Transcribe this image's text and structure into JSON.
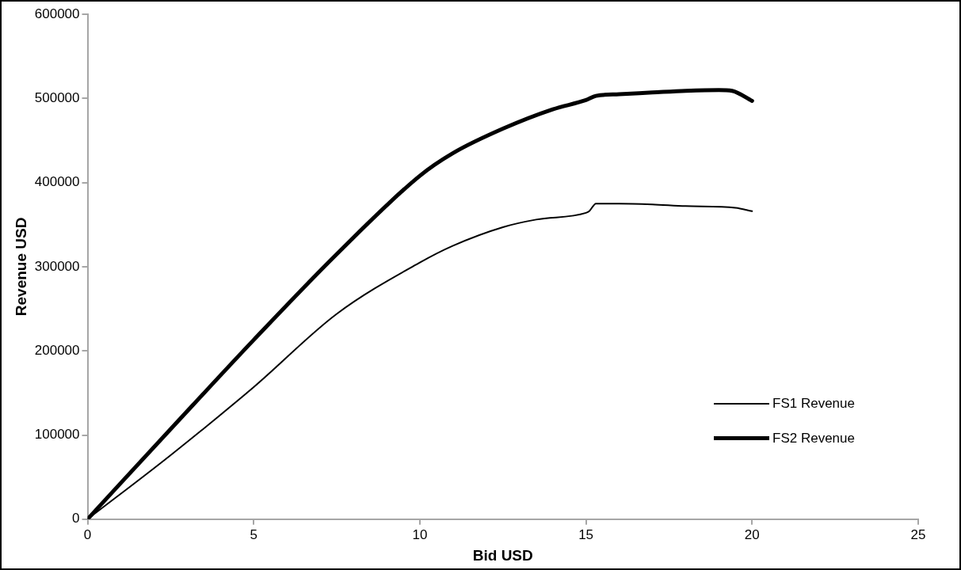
{
  "chart_data": {
    "type": "line",
    "xlabel": "Bid USD",
    "ylabel": "Revenue USD",
    "xlim": [
      0,
      25
    ],
    "xticks": [
      0,
      5,
      10,
      15,
      20,
      25
    ],
    "ylim": [
      0,
      600000
    ],
    "yticks": [
      0,
      100000,
      200000,
      300000,
      400000,
      500000,
      600000
    ],
    "grid": false,
    "legend": "bottom right",
    "marker": "none",
    "line_style": "solid",
    "series": [
      {
        "name": "FS1 Revenue",
        "color": "#000000",
        "x": [
          0,
          2.5,
          5,
          7.5,
          10,
          11,
          12.5,
          13.5,
          15,
          15.1,
          15.3,
          16,
          17,
          18,
          19.5,
          20
        ],
        "values": [
          0,
          76000,
          157000,
          244000,
          305000,
          325000,
          347000,
          356000,
          364000,
          366000,
          375000,
          375000,
          374000,
          372000,
          370000,
          366000
        ]
      },
      {
        "name": "FS2 Revenue",
        "color": "#000000",
        "x": [
          0,
          1,
          2.5,
          5,
          7.5,
          10,
          11,
          12.5,
          14,
          15,
          15.3,
          16,
          17,
          18,
          19,
          19.4,
          20
        ],
        "values": [
          0,
          43000,
          107000,
          213000,
          315000,
          408000,
          435000,
          464000,
          487000,
          498000,
          503000,
          505000,
          507000,
          509000,
          510000,
          509000,
          497000
        ]
      }
    ]
  }
}
